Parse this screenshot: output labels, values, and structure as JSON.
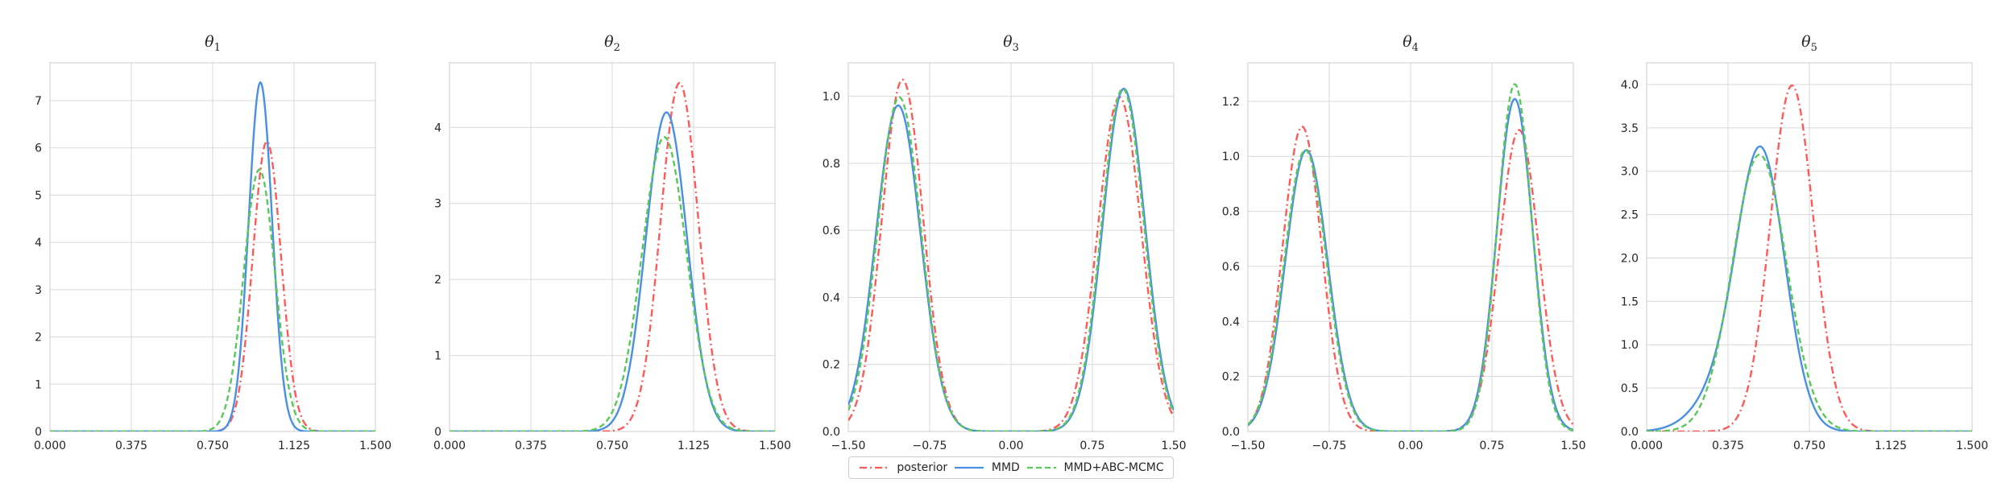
{
  "chart_data": [
    {
      "type": "line",
      "title_base": "θ",
      "title_sub": "1",
      "xlim": [
        0,
        1.5
      ],
      "ylim": [
        0,
        7.8
      ],
      "xticks": [
        0,
        0.375,
        0.75,
        1.125,
        1.5
      ],
      "xtick_labels": [
        "0.000",
        "0.375",
        "0.750",
        "1.125",
        "1.500"
      ],
      "yticks": [
        0,
        1,
        2,
        3,
        4,
        5,
        6,
        7
      ],
      "ytick_labels": [
        "0",
        "1",
        "2",
        "3",
        "4",
        "5",
        "6",
        "7"
      ],
      "series": [
        {
          "name": "posterior",
          "components": [
            [
              1.0,
              0.065,
              1.0
            ]
          ]
        },
        {
          "name": "MMD",
          "components": [
            [
              0.97,
              0.054,
              1.0
            ]
          ]
        },
        {
          "name": "MMD+ABC-MCMC",
          "components": [
            [
              0.965,
              0.072,
              1.0
            ]
          ]
        }
      ]
    },
    {
      "type": "line",
      "title_base": "θ",
      "title_sub": "2",
      "xlim": [
        0,
        1.5
      ],
      "ylim": [
        0,
        4.85
      ],
      "xticks": [
        0,
        0.375,
        0.75,
        1.125,
        1.5
      ],
      "xtick_labels": [
        "0.000",
        "0.375",
        "0.750",
        "1.125",
        "1.500"
      ],
      "yticks": [
        0,
        1,
        2,
        3,
        4
      ],
      "ytick_labels": [
        "0",
        "1",
        "2",
        "3",
        "4"
      ],
      "series": [
        {
          "name": "posterior",
          "components": [
            [
              1.06,
              0.087,
              1.0
            ]
          ]
        },
        {
          "name": "MMD",
          "components": [
            [
              1.0,
              0.095,
              1.0
            ]
          ]
        },
        {
          "name": "MMD+ABC-MCMC",
          "components": [
            [
              0.99,
              0.103,
              1.0
            ]
          ]
        }
      ]
    },
    {
      "type": "line",
      "title_base": "θ",
      "title_sub": "3",
      "xlim": [
        -1.5,
        1.5
      ],
      "ylim": [
        0,
        1.1
      ],
      "xticks": [
        -1.5,
        -0.75,
        0,
        0.75,
        1.5
      ],
      "xtick_labels": [
        "−1.50",
        "−0.75",
        "0.00",
        "0.75",
        "1.50"
      ],
      "yticks": [
        0,
        0.2,
        0.4,
        0.6,
        0.8,
        1.0
      ],
      "ytick_labels": [
        "0.0",
        "0.2",
        "0.4",
        "0.6",
        "0.8",
        "1.0"
      ],
      "series": [
        {
          "name": "posterior",
          "components": [
            [
              -1.0,
              0.19,
              0.5
            ],
            [
              1.0,
              0.2,
              0.5
            ]
          ]
        },
        {
          "name": "MMD",
          "components": [
            [
              -1.04,
              0.205,
              0.5
            ],
            [
              1.04,
              0.195,
              0.5
            ]
          ]
        },
        {
          "name": "MMD+ABC-MCMC",
          "components": [
            [
              -1.03,
              0.2,
              0.5
            ],
            [
              1.03,
              0.195,
              0.5
            ]
          ]
        }
      ]
    },
    {
      "type": "line",
      "title_base": "θ",
      "title_sub": "4",
      "xlim": [
        -1.5,
        1.5
      ],
      "ylim": [
        0,
        1.34
      ],
      "xticks": [
        -1.5,
        -0.75,
        0,
        0.75,
        1.5
      ],
      "xtick_labels": [
        "−1.50",
        "−0.75",
        "0.00",
        "0.75",
        "1.50"
      ],
      "yticks": [
        0,
        0.2,
        0.4,
        0.6,
        0.8,
        1.0,
        1.2
      ],
      "ytick_labels": [
        "0.0",
        "0.2",
        "0.4",
        "0.6",
        "0.8",
        "1.0",
        "1.2"
      ],
      "series": [
        {
          "name": "posterior",
          "components": [
            [
              -1.0,
              0.18,
              0.5
            ],
            [
              1.0,
              0.182,
              0.5
            ]
          ]
        },
        {
          "name": "MMD",
          "components": [
            [
              -0.96,
              0.195,
              0.5
            ],
            [
              0.96,
              0.165,
              0.5
            ]
          ]
        },
        {
          "name": "MMD+ABC-MCMC",
          "components": [
            [
              -0.97,
              0.195,
              0.5
            ],
            [
              0.96,
              0.158,
              0.5
            ]
          ]
        }
      ]
    },
    {
      "type": "line",
      "title_base": "θ",
      "title_sub": "5",
      "xlim": [
        0,
        1.5
      ],
      "ylim": [
        0,
        4.25
      ],
      "xticks": [
        0,
        0.375,
        0.75,
        1.125,
        1.5
      ],
      "xtick_labels": [
        "0.000",
        "0.375",
        "0.750",
        "1.125",
        "1.500"
      ],
      "yticks": [
        0,
        0.5,
        1.0,
        1.5,
        2.0,
        2.5,
        3.0,
        3.5,
        4.0
      ],
      "ytick_labels": [
        "0.0",
        "0.5",
        "1.0",
        "1.5",
        "2.0",
        "2.5",
        "3.0",
        "3.5",
        "4.0"
      ],
      "series": [
        {
          "name": "posterior",
          "components": [
            [
              0.67,
              0.1,
              1.0
            ]
          ]
        },
        {
          "name": "MMD",
          "components": [
            [
              0.53,
              0.11,
              0.85
            ],
            [
              0.36,
              0.13,
              0.15
            ]
          ]
        },
        {
          "name": "MMD+ABC-MCMC",
          "components": [
            [
              0.52,
              0.125,
              1.0
            ]
          ]
        }
      ]
    }
  ],
  "legend": {
    "items": [
      {
        "label": "posterior",
        "color": "#ff5a5a",
        "dash": "dashdot"
      },
      {
        "label": "MMD",
        "color": "#4a90e2",
        "dash": "solid"
      },
      {
        "label": "MMD+ABC-MCMC",
        "color": "#5ac85a",
        "dash": "dashed"
      }
    ]
  }
}
